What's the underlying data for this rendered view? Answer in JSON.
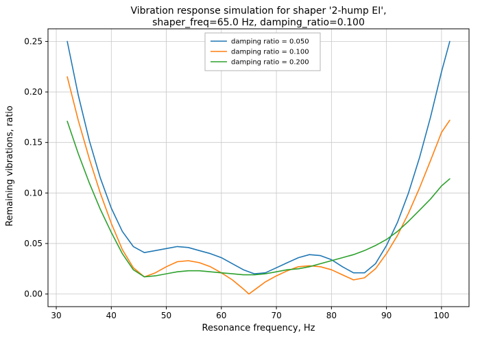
{
  "chart_data": {
    "type": "line",
    "title_line1": "Vibration response simulation for shaper '2-hump EI',",
    "title_line2": "shaper_freq=65.0 Hz, damping_ratio=0.100",
    "xlabel": "Resonance frequency, Hz",
    "ylabel": "Remaining vibrations, ratio",
    "xlim": [
      28.5,
      105
    ],
    "ylim": [
      -0.0125,
      0.2625
    ],
    "xticks": [
      30,
      40,
      50,
      60,
      70,
      80,
      90,
      100
    ],
    "xtick_labels": [
      "30",
      "40",
      "50",
      "60",
      "70",
      "80",
      "90",
      "100"
    ],
    "yticks": [
      0.0,
      0.05,
      0.1,
      0.15,
      0.2,
      0.25
    ],
    "ytick_labels": [
      "0.00",
      "0.05",
      "0.10",
      "0.15",
      "0.20",
      "0.25"
    ],
    "grid": true,
    "legend_position": "upper center",
    "colors": {
      "grid": "#c8c8c8",
      "axes": "#000000",
      "legend_border": "#b3b3b3"
    },
    "x": [
      32,
      34,
      36,
      38,
      40,
      42,
      44,
      46,
      48,
      50,
      52,
      54,
      56,
      58,
      60,
      62,
      64,
      65,
      66,
      68,
      70,
      72,
      74,
      76,
      78,
      80,
      82,
      84,
      86,
      88,
      90,
      92,
      94,
      96,
      98,
      100,
      101.5
    ],
    "series": [
      {
        "name": "damping ratio = 0.050",
        "color": "#1f77b4",
        "values": [
          0.25,
          0.197,
          0.152,
          0.115,
          0.085,
          0.062,
          0.047,
          0.041,
          0.043,
          0.045,
          0.047,
          0.046,
          0.043,
          0.04,
          0.036,
          0.03,
          0.024,
          0.022,
          0.02,
          0.021,
          0.026,
          0.031,
          0.036,
          0.039,
          0.038,
          0.034,
          0.027,
          0.021,
          0.021,
          0.03,
          0.048,
          0.071,
          0.1,
          0.135,
          0.175,
          0.22,
          0.25
        ]
      },
      {
        "name": "damping ratio = 0.100",
        "color": "#ff7f0e",
        "values": [
          0.215,
          0.172,
          0.134,
          0.1,
          0.07,
          0.044,
          0.026,
          0.017,
          0.021,
          0.027,
          0.032,
          0.033,
          0.031,
          0.027,
          0.021,
          0.014,
          0.005,
          0.0,
          0.004,
          0.012,
          0.018,
          0.023,
          0.027,
          0.028,
          0.027,
          0.024,
          0.019,
          0.014,
          0.016,
          0.025,
          0.04,
          0.058,
          0.08,
          0.105,
          0.132,
          0.16,
          0.172
        ]
      },
      {
        "name": "damping ratio = 0.200",
        "color": "#2ca02c",
        "values": [
          0.171,
          0.139,
          0.11,
          0.084,
          0.061,
          0.04,
          0.024,
          0.017,
          0.018,
          0.02,
          0.022,
          0.023,
          0.023,
          0.022,
          0.021,
          0.02,
          0.019,
          0.019,
          0.019,
          0.02,
          0.022,
          0.024,
          0.025,
          0.027,
          0.03,
          0.033,
          0.036,
          0.039,
          0.043,
          0.048,
          0.054,
          0.062,
          0.072,
          0.083,
          0.094,
          0.107,
          0.114
        ]
      }
    ]
  }
}
